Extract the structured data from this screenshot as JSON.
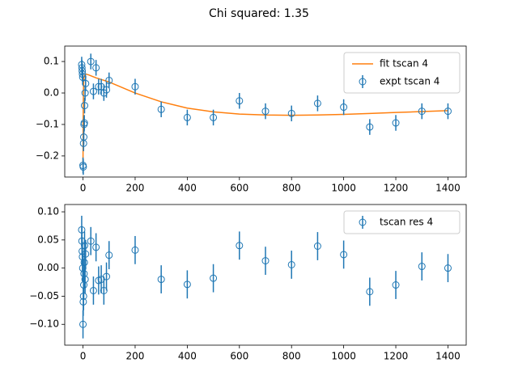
{
  "title": "Chi squared: 1.35",
  "chart_data": [
    {
      "type": "errorbar",
      "xlim": [
        -70,
        1470
      ],
      "ylim": [
        -0.267,
        0.149
      ],
      "xticks": [
        0,
        200,
        400,
        600,
        800,
        1000,
        1200,
        1400
      ],
      "yticks": [
        0.1,
        {
          "value": 0,
          "label": "0.0"
        },
        {
          "value": -0.1,
          "label": "−0.1"
        },
        {
          "value": -0.2,
          "label": "−0.2"
        }
      ],
      "legend": "upper right",
      "series": [
        {
          "name": "fit tscan 4",
          "kind": "line",
          "color": "#ff7f0e",
          "x": [
            0,
            1,
            2,
            3,
            5,
            10,
            20,
            50,
            100,
            200,
            300,
            400,
            500,
            600,
            700,
            800,
            900,
            1000,
            1100,
            1200,
            1300,
            1400
          ],
          "values": [
            -0.23,
            -0.05,
            0.02,
            0.04,
            0.055,
            0.06,
            0.058,
            0.048,
            0.035,
            0.0,
            -0.028,
            -0.048,
            -0.06,
            -0.067,
            -0.07,
            -0.071,
            -0.07,
            -0.068,
            -0.065,
            -0.062,
            -0.059,
            -0.056
          ]
        },
        {
          "name": "expt tscan 4",
          "kind": "errorbar",
          "color": "#1f77b4",
          "x": [
            -5,
            -4,
            -3,
            -2,
            -1,
            0,
            1,
            2,
            3,
            4,
            5,
            6,
            8,
            10,
            30,
            40,
            50,
            60,
            70,
            80,
            90,
            100,
            200,
            300,
            400,
            500,
            600,
            700,
            800,
            900,
            1000,
            1100,
            1200,
            1300,
            1400
          ],
          "values": [
            0.09,
            0.08,
            0.07,
            0.06,
            0.05,
            -0.23,
            -0.235,
            -0.16,
            -0.14,
            -0.1,
            -0.095,
            -0.04,
            0.0,
            0.03,
            0.1,
            0.005,
            0.08,
            0.02,
            0.02,
            0.0,
            0.01,
            0.04,
            0.02,
            -0.052,
            -0.078,
            -0.078,
            -0.025,
            -0.058,
            -0.065,
            -0.033,
            -0.045,
            -0.108,
            -0.095,
            -0.058,
            -0.058
          ],
          "errors": [
            0.025,
            0.025,
            0.025,
            0.025,
            0.025,
            0.025,
            0.025,
            0.025,
            0.025,
            0.025,
            0.025,
            0.025,
            0.025,
            0.025,
            0.025,
            0.025,
            0.025,
            0.025,
            0.025,
            0.025,
            0.025,
            0.025,
            0.025,
            0.025,
            0.025,
            0.025,
            0.025,
            0.025,
            0.025,
            0.025,
            0.025,
            0.025,
            0.025,
            0.025,
            0.025
          ]
        }
      ]
    },
    {
      "type": "errorbar",
      "xlim": [
        -70,
        1470
      ],
      "ylim": [
        -0.137,
        0.113
      ],
      "xticks": [
        0,
        200,
        400,
        600,
        800,
        1000,
        1200,
        1400
      ],
      "yticks": [
        {
          "value": 0.1,
          "label": "0.10"
        },
        0.05,
        {
          "value": 0,
          "label": "0.00"
        },
        {
          "value": -0.05,
          "label": "−0.05"
        },
        {
          "value": -0.1,
          "label": "−0.10"
        }
      ],
      "legend": "upper right",
      "series": [
        {
          "name": "tscan res 4",
          "kind": "errorbar",
          "color": "#1f77b4",
          "x": [
            -5,
            -4,
            -3,
            -2,
            -1,
            0,
            1,
            2,
            3,
            4,
            5,
            6,
            8,
            10,
            30,
            40,
            50,
            60,
            70,
            80,
            90,
            100,
            200,
            300,
            400,
            500,
            600,
            700,
            800,
            900,
            1000,
            1100,
            1200,
            1300,
            1400
          ],
          "values": [
            0.068,
            0.048,
            0.03,
            0.02,
            0.0,
            -0.1,
            -0.06,
            -0.05,
            -0.03,
            -0.01,
            0.01,
            0.04,
            -0.02,
            0.025,
            0.048,
            -0.04,
            0.037,
            -0.022,
            -0.02,
            -0.04,
            -0.015,
            0.023,
            0.032,
            -0.02,
            -0.029,
            -0.018,
            0.04,
            0.013,
            0.006,
            0.039,
            0.024,
            -0.042,
            -0.03,
            0.003,
            0.0
          ],
          "errors": [
            0.025,
            0.025,
            0.025,
            0.025,
            0.025,
            0.025,
            0.025,
            0.025,
            0.025,
            0.025,
            0.025,
            0.025,
            0.025,
            0.025,
            0.025,
            0.025,
            0.025,
            0.025,
            0.025,
            0.025,
            0.025,
            0.025,
            0.025,
            0.025,
            0.025,
            0.025,
            0.025,
            0.025,
            0.025,
            0.025,
            0.025,
            0.025,
            0.025,
            0.025,
            0.025
          ]
        }
      ]
    }
  ]
}
